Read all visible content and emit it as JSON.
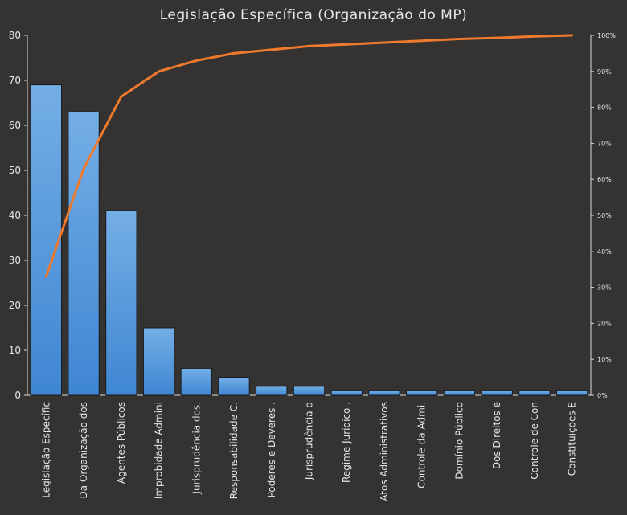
{
  "chart_data": {
    "type": "bar",
    "title": "Legislação Específica (Organização do MP)",
    "categories": [
      "Legislação Específic",
      "Da Organização dos",
      "Agentes Públicos",
      "Improbidade Admini",
      "Jurisprudência dos.",
      "Responsabilidade C.",
      "Poderes e Deveres .",
      "Jurisprudência d",
      "Regime Jurídico .",
      "Atos Administrativos",
      "Controle da Admi.",
      "Domínio Público",
      "Dos Direitos e",
      "Controle de Con",
      "Constituições E"
    ],
    "series": [
      {
        "type": "bar",
        "values": [
          69,
          63,
          41,
          15,
          6,
          4,
          2,
          2,
          1,
          1,
          1,
          1,
          1,
          1,
          1
        ]
      },
      {
        "type": "line",
        "axis": "right",
        "values": [
          33,
          63,
          83,
          90,
          93,
          95,
          96,
          97,
          97.5,
          98,
          98.5,
          99,
          99.3,
          99.7,
          100
        ]
      }
    ],
    "ylim": [
      0,
      80
    ],
    "yticks": [
      "0",
      "10",
      "20",
      "30",
      "40",
      "50",
      "60",
      "70",
      "80"
    ],
    "y2lim": [
      0,
      100
    ],
    "y2ticks": [
      "0%",
      "10%",
      "20%",
      "30%",
      "40%",
      "50%",
      "60%",
      "70%",
      "80%",
      "90%",
      "100%"
    ],
    "grid": false,
    "colors": {
      "bar": "#4a8fd6",
      "bar_edge": "#1a1a1a",
      "line": "#ef7a2e",
      "background": "#343331",
      "axis": "#dcdcdc"
    }
  }
}
